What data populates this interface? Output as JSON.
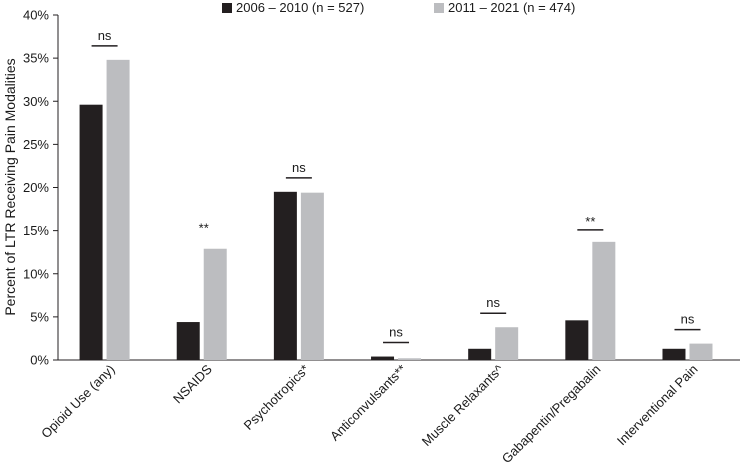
{
  "chart_data": {
    "type": "bar",
    "ylabel": "Percent of LTR Receiving Pain Modalities",
    "ylim": [
      0,
      40
    ],
    "yticks": [
      "0%",
      "5%",
      "10%",
      "15%",
      "20%",
      "25%",
      "30%",
      "35%",
      "40%"
    ],
    "categories": [
      "Opioid Use (any)",
      "NSAIDS",
      "Psychotropics*",
      "Anticonvulsants**",
      "Muscle Relaxants^",
      "Gabapentin/Pregabalin",
      "Interventional Pain"
    ],
    "series": [
      {
        "name": "2006 – 2010 (n = 527)",
        "color": "#231f20",
        "values": [
          29.6,
          4.4,
          19.5,
          0.4,
          1.3,
          4.6,
          1.3
        ]
      },
      {
        "name": "2011 – 2021 (n = 474)",
        "color": "#bcbdc0",
        "values": [
          34.8,
          12.9,
          19.4,
          0.2,
          3.8,
          13.7,
          1.9
        ]
      }
    ],
    "annotations": [
      "ns",
      "**",
      "ns",
      "ns",
      "ns",
      "**",
      "ns"
    ],
    "legend_position": "top",
    "grid": false
  }
}
